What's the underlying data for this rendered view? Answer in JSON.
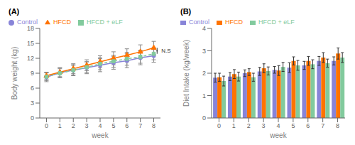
{
  "chart_data": [
    {
      "type": "line",
      "title": "(A)",
      "xlabel": "week",
      "ylabel": "Body weight (kg)",
      "x": [
        0,
        1,
        2,
        3,
        4,
        5,
        6,
        7,
        8
      ],
      "xlim": [
        -0.5,
        8.5
      ],
      "xticks": [
        0,
        1,
        2,
        3,
        4,
        5,
        6,
        7,
        8
      ],
      "ylim": [
        0,
        18
      ],
      "yticks": [
        0,
        3,
        6,
        9,
        12,
        15,
        18
      ],
      "grid": false,
      "legend": "upper left",
      "annotations": [
        "N.S"
      ],
      "series": [
        {
          "name": "Control",
          "color": "#8884d8",
          "marker": "circle",
          "line_style": "solid",
          "values": [
            8.2,
            9.1,
            9.6,
            10.1,
            10.6,
            11.1,
            11.5,
            12.1,
            12.5
          ],
          "errors": [
            0.9,
            1.0,
            1.1,
            1.2,
            1.3,
            1.3,
            1.4,
            1.4,
            1.3
          ]
        },
        {
          "name": "HFCD",
          "color": "#ff7300",
          "marker": "triangle",
          "line_style": "solid",
          "values": [
            8.5,
            9.2,
            9.9,
            10.6,
            11.3,
            12.0,
            12.6,
            13.3,
            14.1
          ],
          "errors": [
            0.7,
            0.9,
            1.0,
            1.1,
            1.2,
            1.3,
            1.3,
            1.4,
            1.3
          ]
        },
        {
          "name": "HFCD + eLF",
          "color": "#82ca9d",
          "marker": "square",
          "line_style": "dashed",
          "values": [
            8.3,
            9.0,
            9.6,
            10.2,
            10.9,
            11.4,
            11.9,
            12.3,
            12.9
          ],
          "errors": [
            0.8,
            0.9,
            1.0,
            1.1,
            1.2,
            1.2,
            1.3,
            1.3,
            1.2
          ]
        }
      ]
    },
    {
      "type": "bar",
      "title": "(B)",
      "xlabel": "week",
      "ylabel": "Diet Intake (kg/week)",
      "categories": [
        "0",
        "1",
        "2",
        "3",
        "4",
        "5",
        "6",
        "7",
        "8"
      ],
      "ylim": [
        0,
        4
      ],
      "yticks": [
        0,
        1,
        2,
        3,
        4
      ],
      "grid": false,
      "legend": "upper left",
      "series": [
        {
          "name": "Control",
          "color": "#8884d8",
          "values": [
            1.8,
            1.85,
            2.0,
            2.08,
            2.15,
            2.25,
            2.35,
            2.55,
            2.55
          ],
          "errors": [
            0.2,
            0.18,
            0.15,
            0.18,
            0.15,
            0.22,
            0.18,
            0.2,
            0.18
          ]
        },
        {
          "name": "HFCD",
          "color": "#ff7300",
          "values": [
            1.82,
            1.96,
            2.05,
            2.22,
            2.12,
            2.55,
            2.55,
            2.7,
            2.88
          ],
          "errors": [
            0.18,
            0.2,
            0.15,
            0.2,
            0.22,
            0.18,
            0.2,
            0.22,
            0.25
          ]
        },
        {
          "name": "HFCD + eLF",
          "color": "#82ca9d",
          "values": [
            1.65,
            1.85,
            1.82,
            2.1,
            2.28,
            2.35,
            2.4,
            2.45,
            2.7
          ],
          "errors": [
            0.22,
            0.2,
            0.18,
            0.18,
            0.2,
            0.22,
            0.2,
            0.18,
            0.22
          ]
        }
      ]
    }
  ]
}
